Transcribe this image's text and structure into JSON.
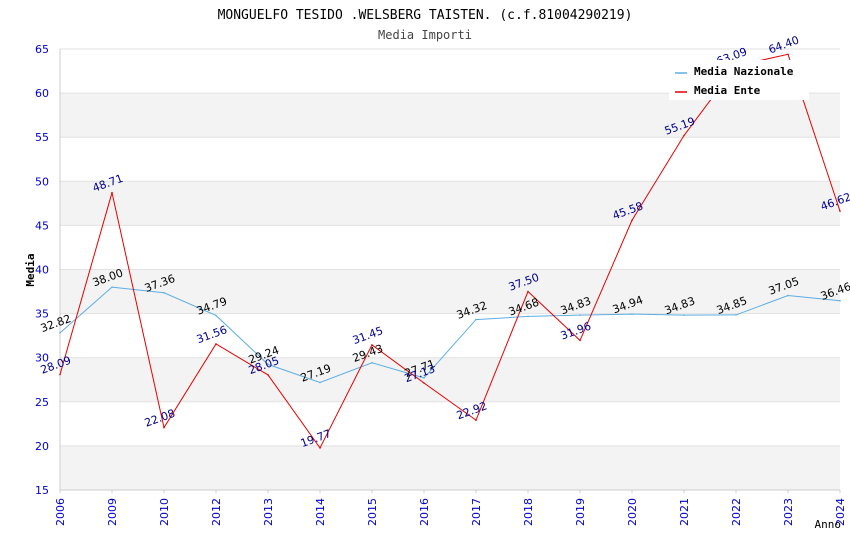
{
  "chart_data": {
    "type": "line",
    "title": "MONGUELFO TESIDO .WELSBERG TAISTEN. (c.f.81004290219)",
    "subtitle": "Media Importi",
    "xlabel": "Anno",
    "ylabel": "Media",
    "ylim": [
      15,
      65
    ],
    "y_ticks": [
      15,
      20,
      25,
      30,
      35,
      40,
      45,
      50,
      55,
      60,
      65
    ],
    "categories": [
      "2006",
      "2009",
      "2010",
      "2012",
      "2013",
      "2014",
      "2015",
      "2016",
      "2017",
      "2018",
      "2019",
      "2020",
      "2021",
      "2022",
      "2023",
      "2024"
    ],
    "series": [
      {
        "name": "Media Nazionale",
        "color": "#5DADE2",
        "label_color": "#000000",
        "values": [
          32.82,
          38.0,
          37.36,
          34.79,
          29.24,
          27.19,
          29.43,
          27.71,
          34.32,
          34.68,
          34.83,
          34.94,
          34.83,
          34.85,
          37.05,
          36.46
        ],
        "labels": [
          "32.82",
          "38.00",
          "37.36",
          "34.79",
          "29.24",
          "27.19",
          "29.43",
          "27.71",
          "34.32",
          "34.68",
          "34.83",
          "34.94",
          "34.83",
          "34.85",
          "37.05",
          "36.46"
        ]
      },
      {
        "name": "Media Ente",
        "color": "#E60000",
        "label_color": "#00008B",
        "values": [
          28.09,
          48.71,
          22.08,
          31.56,
          28.05,
          19.77,
          31.45,
          27.13,
          22.92,
          37.5,
          31.96,
          45.58,
          55.19,
          63.09,
          64.4,
          46.62
        ],
        "labels": [
          "28.09",
          "48.71",
          "22.08",
          "31.56",
          "28.05",
          "19.77",
          "31.45",
          "27.13",
          "22.92",
          "37.50",
          "31.96",
          "45.58",
          "55.19",
          "63.09",
          "64.40",
          "46.62"
        ]
      }
    ],
    "grid": true,
    "legend_position": "top-right",
    "axis_color": "#0000CC"
  }
}
